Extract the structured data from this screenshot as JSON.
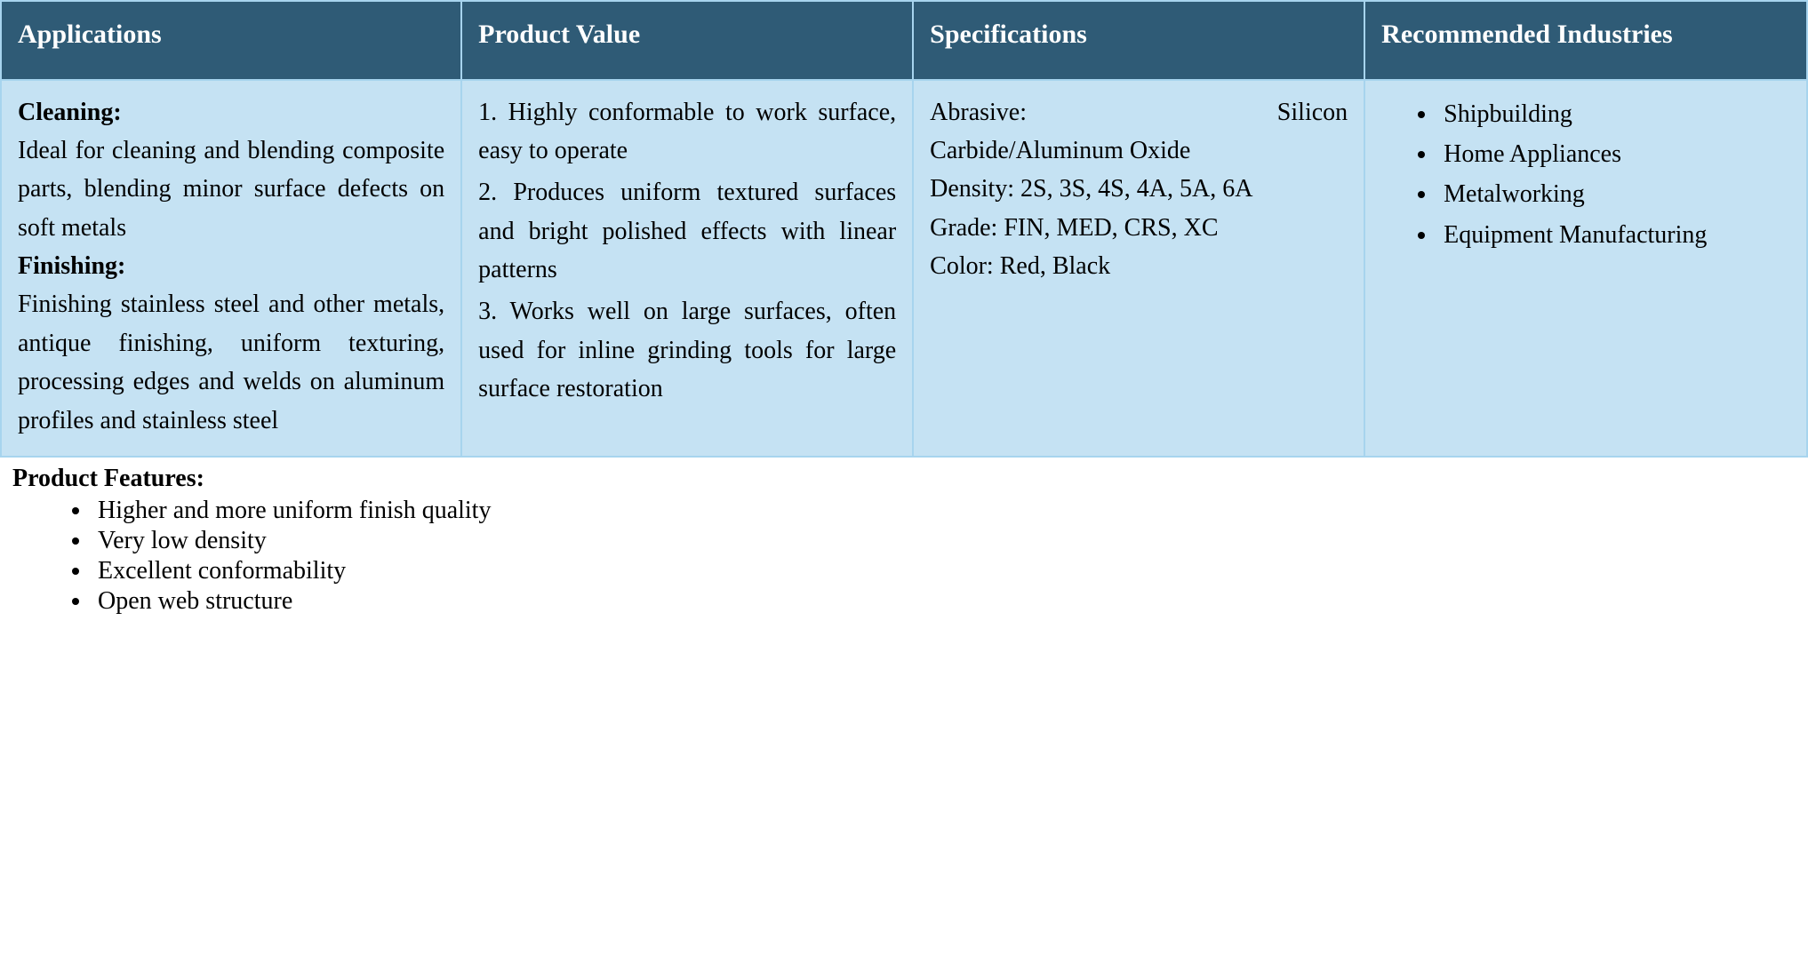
{
  "colors": {
    "header_bg": "#2f5b76",
    "header_text": "#ffffff",
    "body_bg": "#c5e2f3",
    "border": "#a7d4ee",
    "text": "#000000"
  },
  "typography": {
    "font_family": "Times New Roman",
    "header_fontsize_pt": 22,
    "body_fontsize_pt": 20,
    "header_fontweight": "bold"
  },
  "table": {
    "columns": [
      {
        "label": "Applications",
        "width_pct": 25.5
      },
      {
        "label": "Product Value",
        "width_pct": 25
      },
      {
        "label": "Specifications",
        "width_pct": 25
      },
      {
        "label": "Recommended Industries",
        "width_pct": 24.5
      }
    ],
    "row": {
      "applications": {
        "cleaning_label": "Cleaning:",
        "cleaning_text": "Ideal for cleaning and blending composite parts, blending minor surface defects on soft metals",
        "finishing_label": "Finishing:",
        "finishing_text": "Finishing stainless steel and other metals, antique finishing, uniform texturing, processing edges and welds on aluminum profiles and stainless steel"
      },
      "product_value": {
        "items": [
          "1. Highly conformable to work surface, easy to operate",
          "2. Produces uniform textured surfaces and bright polished effects with linear patterns",
          "3. Works well on large surfaces, often used for inline grinding tools for large surface restoration"
        ]
      },
      "specifications": {
        "abrasive_line_1": "Abrasive: Silicon",
        "abrasive_line_2": "Carbide/Aluminum Oxide",
        "density": "Density: 2S, 3S, 4S, 4A, 5A, 6A",
        "grade": "Grade: FIN, MED, CRS, XC",
        "color": "Color: Red, Black"
      },
      "industries": {
        "items": [
          "Shipbuilding",
          "Home Appliances",
          "Metalworking",
          "Equipment Manufacturing"
        ]
      }
    }
  },
  "features": {
    "title": "Product Features:",
    "items": [
      "Higher and more uniform finish quality",
      "Very low density",
      "Excellent conformability",
      "Open web structure"
    ]
  }
}
